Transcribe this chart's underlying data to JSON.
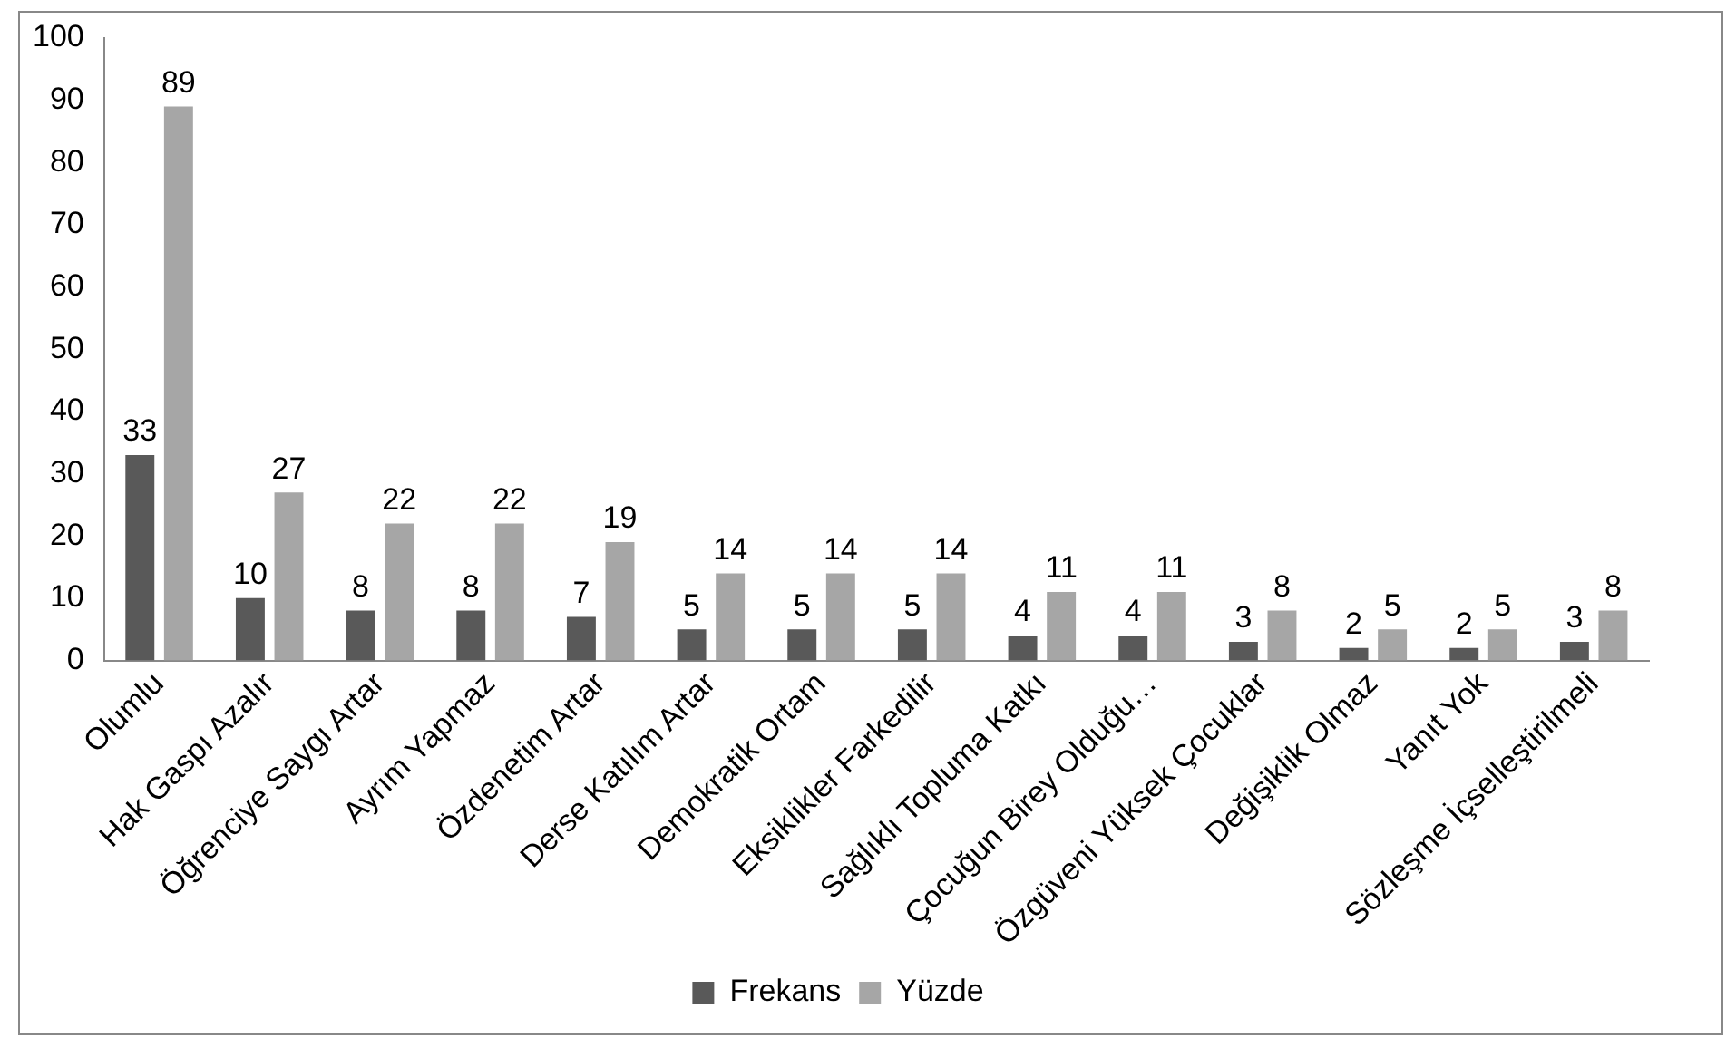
{
  "chart_data": {
    "type": "bar",
    "categories": [
      "Olumlu",
      "Hak Gaspı Azalır",
      "Öğrenciye Saygı Artar",
      "Ayrım Yapmaz",
      "Özdenetim Artar",
      "Derse Katılım Artar",
      "Demokratik Ortam",
      "Eksiklikler Farkedilir",
      "Sağlıklı Topluma Katkı",
      "Çocuğun Birey Olduğu…",
      "Özgüveni Yüksek Çocuklar",
      "Değişiklik Olmaz",
      "Yanıt Yok",
      "Sözleşme İçselleştirilmeli"
    ],
    "series": [
      {
        "name": "Frekans",
        "color": "#595959",
        "values": [
          33,
          10,
          8,
          8,
          7,
          5,
          5,
          5,
          4,
          4,
          3,
          2,
          2,
          3
        ]
      },
      {
        "name": "Yüzde",
        "color": "#a6a6a6",
        "values": [
          89,
          27,
          22,
          22,
          19,
          14,
          14,
          14,
          11,
          11,
          8,
          5,
          5,
          8
        ]
      }
    ],
    "ylim": [
      0,
      100
    ],
    "yticks": [
      0,
      10,
      20,
      30,
      40,
      50,
      60,
      70,
      80,
      90,
      100
    ],
    "grid": false,
    "legend": "bottom",
    "data_labels": true
  }
}
